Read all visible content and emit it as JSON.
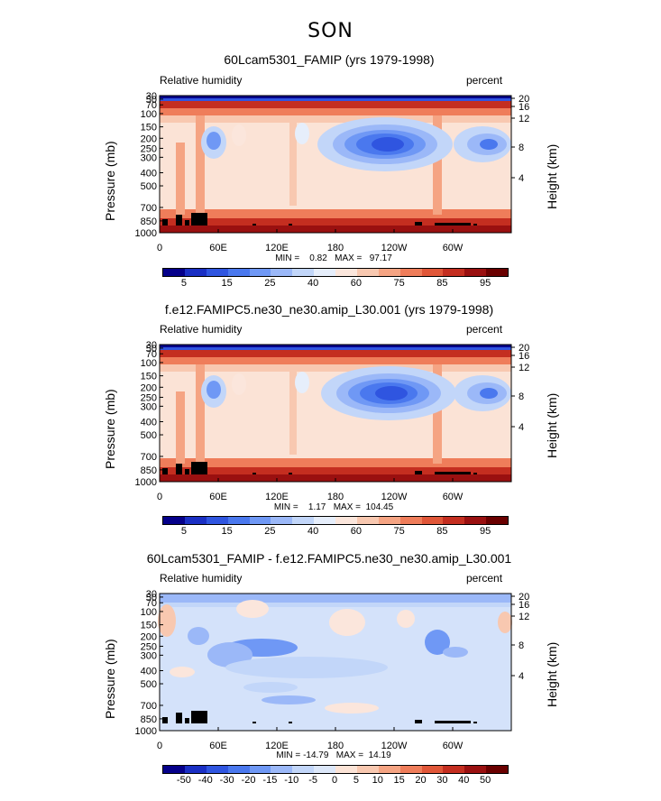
{
  "figure_title": "SON",
  "colors": {
    "land": "#000000",
    "blue_deep": "#1f3fcf",
    "red_deep": "#8b0000"
  },
  "panels": [
    {
      "title": "60Lcam5301_FAMIP (yrs 1979-1998)",
      "left_label": "Relative humidity",
      "right_label": "percent",
      "ylabel": "Pressure (mb)",
      "ylabel_right": "Height (km)",
      "min_label": "MIN =",
      "min_value": "0.82",
      "max_label": "MAX =",
      "max_value": "97.17",
      "colorbar_labels": [
        "5",
        "15",
        "25",
        "40",
        "60",
        "75",
        "85",
        "95"
      ]
    },
    {
      "title": "f.e12.FAMIPC5.ne30_ne30.amip_L30.001 (yrs 1979-1998)",
      "left_label": "Relative humidity",
      "right_label": "percent",
      "ylabel": "Pressure (mb)",
      "ylabel_right": "Height (km)",
      "min_label": "MIN =",
      "min_value": "1.17",
      "max_label": "MAX =",
      "max_value": "104.45",
      "colorbar_labels": [
        "5",
        "15",
        "25",
        "40",
        "60",
        "75",
        "85",
        "95"
      ]
    },
    {
      "title": "60Lcam5301_FAMIP - f.e12.FAMIPC5.ne30_ne30.amip_L30.001",
      "left_label": "Relative humidity",
      "right_label": "percent",
      "ylabel": "Pressure (mb)",
      "ylabel_right": "Height (km)",
      "min_label": "MIN = ",
      "min_value": "-14.79",
      "max_label": "MAX =",
      "max_value": "14.19",
      "colorbar_labels": [
        "-50",
        "-40",
        "-30",
        "-20",
        "-15",
        "-10",
        "-5",
        "0",
        "5",
        "10",
        "15",
        "20",
        "30",
        "40",
        "50"
      ]
    }
  ],
  "chart_data": [
    {
      "type": "heatmap",
      "title": "60Lcam5301_FAMIP (yrs 1979-1998)",
      "variable": "Relative humidity",
      "units": "percent",
      "x_ticks": [
        "0",
        "60E",
        "120E",
        "180",
        "120W",
        "60W"
      ],
      "y_ticks_pressure": [
        "30",
        "50",
        "70",
        "100",
        "150",
        "200",
        "250",
        "300",
        "400",
        "500",
        "700",
        "850",
        "1000"
      ],
      "y_ticks_height": [
        "20",
        "16",
        "12",
        "8",
        "4"
      ],
      "levels": [
        5,
        10,
        15,
        20,
        25,
        30,
        40,
        50,
        60,
        70,
        75,
        80,
        85,
        90,
        95
      ],
      "min": 0.82,
      "max": 97.17
    },
    {
      "type": "heatmap",
      "title": "f.e12.FAMIPC5.ne30_ne30.amip_L30.001 (yrs 1979-1998)",
      "variable": "Relative humidity",
      "units": "percent",
      "x_ticks": [
        "0",
        "60E",
        "120E",
        "180",
        "120W",
        "60W"
      ],
      "y_ticks_pressure": [
        "30",
        "50",
        "70",
        "100",
        "150",
        "200",
        "250",
        "300",
        "400",
        "500",
        "700",
        "850",
        "1000"
      ],
      "y_ticks_height": [
        "20",
        "16",
        "12",
        "8",
        "4"
      ],
      "levels": [
        5,
        10,
        15,
        20,
        25,
        30,
        40,
        50,
        60,
        70,
        75,
        80,
        85,
        90,
        95
      ],
      "min": 1.17,
      "max": 104.45
    },
    {
      "type": "heatmap",
      "title": "60Lcam5301_FAMIP - f.e12.FAMIPC5.ne30_ne30.amip_L30.001",
      "variable": "Relative humidity",
      "units": "percent",
      "x_ticks": [
        "0",
        "60E",
        "120E",
        "180",
        "120W",
        "60W"
      ],
      "y_ticks_pressure": [
        "30",
        "50",
        "70",
        "100",
        "150",
        "200",
        "250",
        "300",
        "400",
        "500",
        "700",
        "850",
        "1000"
      ],
      "y_ticks_height": [
        "20",
        "16",
        "12",
        "8",
        "4"
      ],
      "levels": [
        -50,
        -40,
        -30,
        -20,
        -15,
        -10,
        -5,
        0,
        5,
        10,
        15,
        20,
        30,
        40,
        50
      ],
      "min": -14.79,
      "max": 14.19
    }
  ]
}
